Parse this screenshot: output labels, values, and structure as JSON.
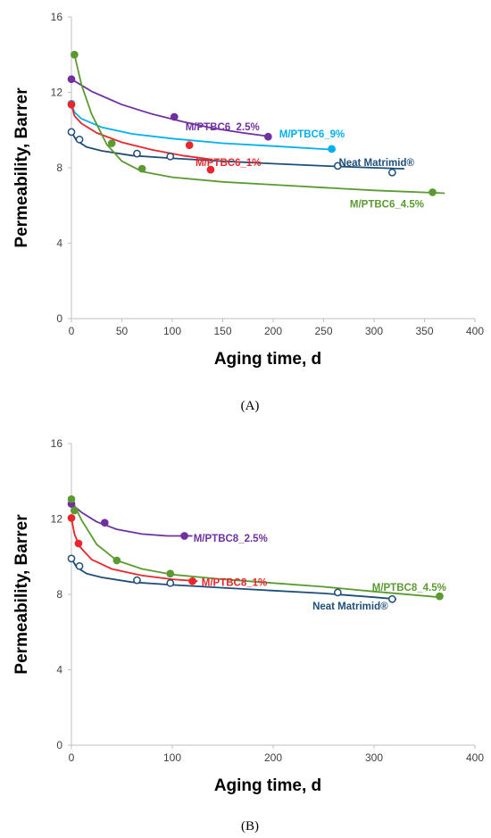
{
  "chart_data": [
    {
      "type": "scatter",
      "caption": "(A)",
      "xlabel": "Aging time, d",
      "ylabel": "Permeability, Barrer",
      "xlim": [
        0,
        400
      ],
      "ylim": [
        0,
        16
      ],
      "xticks": [
        0,
        50,
        100,
        150,
        200,
        250,
        300,
        350,
        400
      ],
      "yticks": [
        0,
        4,
        8,
        12,
        16
      ],
      "grid": false,
      "series": [
        {
          "name": "Neat Matrimid®",
          "color": "#1f4e79",
          "hollow": true,
          "x": [
            0,
            8,
            65,
            98,
            264,
            318
          ],
          "y": [
            9.9,
            9.5,
            8.75,
            8.6,
            8.1,
            7.75
          ],
          "fit_x": [
            0,
            5,
            15,
            30,
            60,
            100,
            150,
            200,
            250,
            300,
            330
          ],
          "fit_y": [
            9.9,
            9.45,
            9.1,
            8.9,
            8.65,
            8.5,
            8.35,
            8.22,
            8.1,
            8.0,
            7.95
          ]
        },
        {
          "name": "M/PTBC6_2.5%",
          "color": "#7030a0",
          "hollow": false,
          "x": [
            0,
            102,
            195
          ],
          "y": [
            12.7,
            10.7,
            9.65
          ],
          "fit_x": [
            0,
            20,
            50,
            80,
            110,
            140,
            170,
            198
          ],
          "fit_y": [
            12.7,
            12.05,
            11.35,
            10.85,
            10.45,
            10.1,
            9.85,
            9.65
          ]
        },
        {
          "name": "M/PTBC6_9%",
          "color": "#00b0f0",
          "hollow": false,
          "x": [
            0,
            258
          ],
          "y": [
            11.4,
            9.0
          ],
          "fit_x": [
            0,
            3,
            10,
            30,
            60,
            100,
            150,
            200,
            262
          ],
          "fit_y": [
            11.4,
            10.95,
            10.6,
            10.15,
            9.8,
            9.55,
            9.3,
            9.15,
            8.95
          ]
        },
        {
          "name": "M/PTBC6_1%",
          "color": "#e8262b",
          "hollow": false,
          "x": [
            0,
            117,
            138
          ],
          "y": [
            11.35,
            9.2,
            7.9
          ],
          "fit_x": [
            0,
            3,
            10,
            25,
            50,
            80,
            110,
            138
          ],
          "fit_y": [
            11.35,
            10.75,
            10.35,
            9.85,
            9.35,
            8.95,
            8.65,
            8.45
          ]
        },
        {
          "name": "M/PTBC6_4.5%",
          "color": "#5b9a31",
          "hollow": false,
          "x": [
            3,
            40,
            70,
            358
          ],
          "y": [
            14.0,
            9.3,
            7.95,
            6.7
          ],
          "fit_x": [
            3,
            10,
            20,
            35,
            50,
            70,
            100,
            150,
            200,
            250,
            300,
            370
          ],
          "fit_y": [
            14.0,
            12.4,
            10.85,
            9.25,
            8.35,
            7.8,
            7.5,
            7.25,
            7.1,
            6.95,
            6.8,
            6.65
          ]
        }
      ],
      "labels": [
        {
          "series": 1,
          "text": "M/PTBC6_2.5%",
          "x": 113,
          "y": 10.0
        },
        {
          "series": 2,
          "text": "M/PTBC6_9%",
          "x": 206,
          "y": 9.6
        },
        {
          "series": 3,
          "text": "M/PTBC6_1%",
          "x": 123,
          "y": 8.1
        },
        {
          "series": 0,
          "text": "Neat Matrimid®",
          "x": 265,
          "y": 8.1
        },
        {
          "series": 4,
          "text": "M/PTBC6_4.5%",
          "x": 276,
          "y": 5.9
        }
      ]
    },
    {
      "type": "scatter",
      "caption": "(B)",
      "xlabel": "Aging time, d",
      "ylabel": "Permeability, Barrer",
      "xlim": [
        0,
        400
      ],
      "ylim": [
        0,
        16
      ],
      "xticks": [
        0,
        100,
        200,
        300,
        400
      ],
      "yticks": [
        0,
        4,
        8,
        12,
        16
      ],
      "grid": false,
      "series": [
        {
          "name": "Neat Matrimid®",
          "color": "#1f4e79",
          "hollow": true,
          "x": [
            0,
            8,
            65,
            98,
            264,
            318
          ],
          "y": [
            9.9,
            9.5,
            8.75,
            8.6,
            8.1,
            7.75
          ],
          "fit_x": [
            0,
            5,
            15,
            30,
            60,
            100,
            150,
            200,
            250,
            300,
            322
          ],
          "fit_y": [
            9.9,
            9.45,
            9.1,
            8.9,
            8.65,
            8.5,
            8.35,
            8.2,
            8.05,
            7.85,
            7.75
          ]
        },
        {
          "name": "M/PTBC8_2.5%",
          "color": "#7030a0",
          "hollow": false,
          "x": [
            0,
            33,
            112
          ],
          "y": [
            12.8,
            11.8,
            11.1
          ],
          "fit_x": [
            0,
            10,
            25,
            45,
            70,
            95,
            120
          ],
          "fit_y": [
            12.8,
            12.35,
            11.85,
            11.45,
            11.2,
            11.1,
            11.1
          ]
        },
        {
          "name": "M/PTBC8_1%",
          "color": "#e8262b",
          "hollow": false,
          "x": [
            0,
            7,
            120
          ],
          "y": [
            12.05,
            10.7,
            8.7
          ],
          "fit_x": [
            0,
            3,
            8,
            20,
            40,
            70,
            100,
            125
          ],
          "fit_y": [
            12.05,
            11.2,
            10.55,
            9.85,
            9.35,
            9.0,
            8.8,
            8.7
          ]
        },
        {
          "name": "M/PTBC8_4.5%",
          "color": "#5b9a31",
          "hollow": false,
          "x": [
            0,
            3,
            45,
            98,
            365
          ],
          "y": [
            13.05,
            12.45,
            9.8,
            9.1,
            7.9
          ],
          "fit_x": [
            0,
            10,
            25,
            45,
            70,
            100,
            150,
            200,
            250,
            300,
            365
          ],
          "fit_y": [
            13.05,
            11.95,
            10.65,
            9.8,
            9.35,
            9.05,
            8.8,
            8.6,
            8.4,
            8.15,
            7.85
          ]
        }
      ],
      "labels": [
        {
          "series": 1,
          "text": "M/PTBC8_2.5%",
          "x": 121,
          "y": 10.8
        },
        {
          "series": 2,
          "text": "M/PTBC8_1%",
          "x": 129,
          "y": 8.45
        },
        {
          "series": 3,
          "text": "M/PTBC8_4.5%",
          "x": 298,
          "y": 8.2
        },
        {
          "series": 0,
          "text": "Neat Matrimid®",
          "x": 239,
          "y": 7.2
        }
      ]
    }
  ]
}
